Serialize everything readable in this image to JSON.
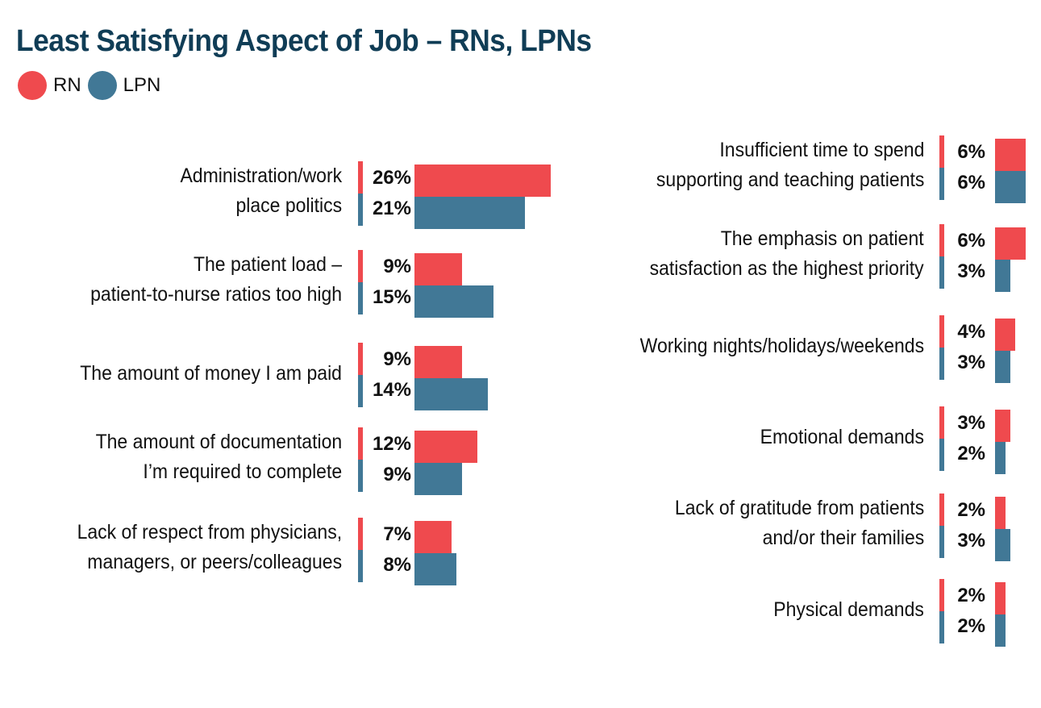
{
  "title": "Least Satisfying Aspect of Job – RNs, LPNs",
  "legend": [
    {
      "label": "RN",
      "color": "#ef4a4e"
    },
    {
      "label": "LPN",
      "color": "#417896"
    }
  ],
  "colors": {
    "rn": "#ef4a4e",
    "lpn": "#417896",
    "title": "#103d56"
  },
  "left": [
    {
      "lines": [
        "Administration/work",
        "place politics"
      ],
      "rn": "26%",
      "lpn": "21%"
    },
    {
      "lines": [
        "The patient load –",
        "patient-to-nurse ratios too high"
      ],
      "rn": "9%",
      "lpn": "15%"
    },
    {
      "lines": [
        "The amount of money I am paid"
      ],
      "rn": "9%",
      "lpn": "14%"
    },
    {
      "lines": [
        "The amount of documentation",
        "I’m required to complete"
      ],
      "rn": "12%",
      "lpn": "9%"
    },
    {
      "lines": [
        "Lack of respect from physicians,",
        "managers, or peers/colleagues"
      ],
      "rn": "7%",
      "lpn": "8%"
    }
  ],
  "right": [
    {
      "lines": [
        "Insufficient time to spend",
        "supporting and teaching patients"
      ],
      "rn": "6%",
      "lpn": "6%"
    },
    {
      "lines": [
        "The emphasis on patient",
        "satisfaction as the highest priority"
      ],
      "rn": "6%",
      "lpn": "3%"
    },
    {
      "lines": [
        "Working nights/holidays/weekends"
      ],
      "rn": "4%",
      "lpn": "3%"
    },
    {
      "lines": [
        "Emotional demands"
      ],
      "rn": "3%",
      "lpn": "2%"
    },
    {
      "lines": [
        "Lack of gratitude from patients",
        "and/or their families"
      ],
      "rn": "2%",
      "lpn": "3%"
    },
    {
      "lines": [
        "Physical demands"
      ],
      "rn": "2%",
      "lpn": "2%"
    }
  ],
  "chart_data": {
    "type": "bar",
    "title": "Least Satisfying Aspect of Job – RNs, LPNs",
    "orientation": "horizontal",
    "legend_position": "top-left",
    "grid": false,
    "xlabel": "",
    "ylabel": "",
    "categories": [
      "Administration/work place politics",
      "The patient load – patient-to-nurse ratios too high",
      "The amount of money I am paid",
      "The amount of documentation I’m required to complete",
      "Lack of respect from physicians, managers, or peers/colleagues",
      "Insufficient time to spend supporting and teaching patients",
      "The emphasis on patient satisfaction as the highest priority",
      "Working nights/holidays/weekends",
      "Emotional demands",
      "Lack of gratitude from patients and/or their families",
      "Physical demands"
    ],
    "series": [
      {
        "name": "RN",
        "color": "#ef4a4e",
        "values": [
          26,
          9,
          9,
          12,
          7,
          6,
          6,
          4,
          3,
          2,
          2
        ]
      },
      {
        "name": "LPN",
        "color": "#417896",
        "values": [
          21,
          15,
          14,
          9,
          8,
          6,
          3,
          3,
          2,
          3,
          2
        ]
      }
    ],
    "unit": "%"
  }
}
